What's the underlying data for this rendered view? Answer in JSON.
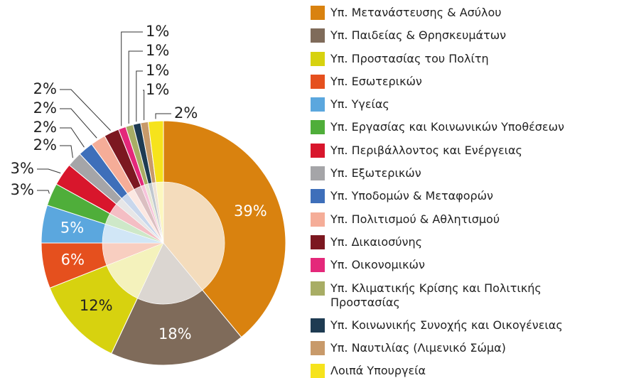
{
  "chart_data": {
    "type": "pie",
    "categories": [
      "Υπ. Μετανάστευσης & Ασύλου",
      "Υπ. Παιδείας & Θρησκευμάτων",
      "Υπ. Προστασίας του Πολίτη",
      "Υπ. Εσωτερικών",
      "Υπ. Υγείας",
      "Υπ. Εργασίας και Κοινωνικών Υποθέσεων",
      "Υπ. Περιβάλλοντος και Ενέργειας",
      "Υπ. Εξωτερικών",
      "Υπ. Υποδομών & Μεταφορών",
      "Υπ. Πολιτισμού & Αθλητισμού",
      "Υπ. Δικαιοσύνης",
      "Υπ. Οικονομικών",
      "Υπ. Κλιματικής Κρίσης και Πολιτικής Προστασίας",
      "Υπ. Κοινωνικής Συνοχής και Οικογένειας",
      "Υπ. Ναυτιλίας (Λιμενικό Σώμα)",
      "Λοιπά Υπουργεία"
    ],
    "values": [
      39,
      18,
      12,
      6,
      5,
      3,
      3,
      2,
      2,
      2,
      2,
      1,
      1,
      1,
      1,
      2
    ],
    "value_labels": [
      "39%",
      "18%",
      "12%",
      "6%",
      "5%",
      "3%",
      "3%",
      "2%",
      "2%",
      "2%",
      "2%",
      "1%",
      "1%",
      "1%",
      "1%",
      "2%"
    ],
    "colors": [
      "#d9820f",
      "#7f6b5a",
      "#d7d20f",
      "#e5501e",
      "#5ba7de",
      "#4fae3a",
      "#d8162c",
      "#a5a5a8",
      "#3e6fba",
      "#f5ad98",
      "#7c1820",
      "#e4287a",
      "#a8ad65",
      "#1e3b52",
      "#c89a6a",
      "#f6e31c"
    ],
    "legend": "right"
  }
}
